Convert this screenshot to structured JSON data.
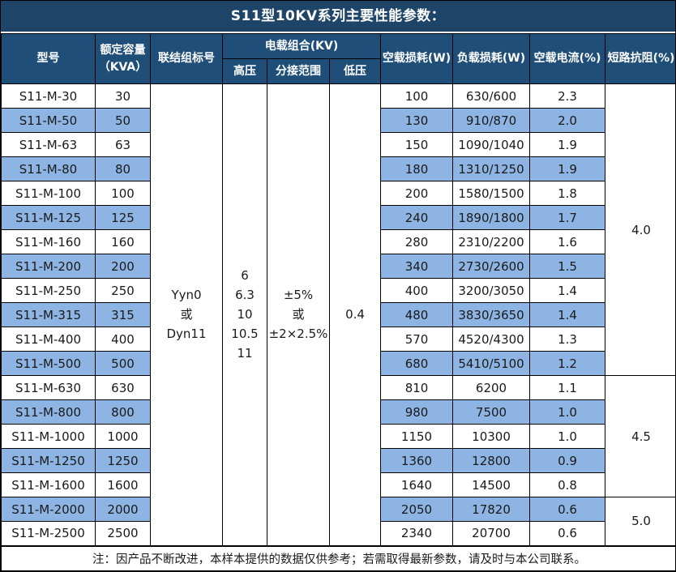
{
  "title": "S11型10KV系列主要性能参数：",
  "header": {
    "model": "型号",
    "capacity": "额定容量\n（KVA）",
    "connection": "联结组标号",
    "load_combo": "电载组合(KV)",
    "hv": "高压",
    "tap_range": "分接范围",
    "lv": "低压",
    "no_load_loss": "空载损耗(W)",
    "load_loss": "负载损耗(W)",
    "no_load_current": "空载电流(%)",
    "impedance": "短路抗阻(%)"
  },
  "merged": {
    "connection_lines": [
      "Yyn0",
      "或",
      "Dyn11"
    ],
    "hv_lines": [
      "6",
      "6.3",
      "10",
      "10.5",
      "11"
    ],
    "tap_lines": [
      "±5%",
      "或",
      "±2×2.5%"
    ],
    "lv_value": "0.4",
    "impedance_groups": [
      {
        "value": "4.0",
        "rows": 12
      },
      {
        "value": "4.5",
        "rows": 5
      },
      {
        "value": "5.0",
        "rows": 2
      }
    ]
  },
  "rows": [
    {
      "model": "S11-M-30",
      "capacity": "30",
      "no_load_loss": "100",
      "load_loss": "630/600",
      "no_load_current": "2.3"
    },
    {
      "model": "S11-M-50",
      "capacity": "50",
      "no_load_loss": "130",
      "load_loss": "910/870",
      "no_load_current": "2.0"
    },
    {
      "model": "S11-M-63",
      "capacity": "63",
      "no_load_loss": "150",
      "load_loss": "1090/1040",
      "no_load_current": "1.9"
    },
    {
      "model": "S11-M-80",
      "capacity": "80",
      "no_load_loss": "180",
      "load_loss": "1310/1250",
      "no_load_current": "1.9"
    },
    {
      "model": "S11-M-100",
      "capacity": "100",
      "no_load_loss": "200",
      "load_loss": "1580/1500",
      "no_load_current": "1.8"
    },
    {
      "model": "S11-M-125",
      "capacity": "125",
      "no_load_loss": "240",
      "load_loss": "1890/1800",
      "no_load_current": "1.7"
    },
    {
      "model": "S11-M-160",
      "capacity": "160",
      "no_load_loss": "280",
      "load_loss": "2310/2200",
      "no_load_current": "1.6"
    },
    {
      "model": "S11-M-200",
      "capacity": "200",
      "no_load_loss": "340",
      "load_loss": "2730/2600",
      "no_load_current": "1.5"
    },
    {
      "model": "S11-M-250",
      "capacity": "250",
      "no_load_loss": "400",
      "load_loss": "3200/3050",
      "no_load_current": "1.4"
    },
    {
      "model": "S11-M-315",
      "capacity": "315",
      "no_load_loss": "480",
      "load_loss": "3830/3650",
      "no_load_current": "1.4"
    },
    {
      "model": "S11-M-400",
      "capacity": "400",
      "no_load_loss": "570",
      "load_loss": "4520/4300",
      "no_load_current": "1.3"
    },
    {
      "model": "S11-M-500",
      "capacity": "500",
      "no_load_loss": "680",
      "load_loss": "5410/5100",
      "no_load_current": "1.2"
    },
    {
      "model": "S11-M-630",
      "capacity": "630",
      "no_load_loss": "810",
      "load_loss": "6200",
      "no_load_current": "1.1"
    },
    {
      "model": "S11-M-800",
      "capacity": "800",
      "no_load_loss": "980",
      "load_loss": "7500",
      "no_load_current": "1.0"
    },
    {
      "model": "S11-M-1000",
      "capacity": "1000",
      "no_load_loss": "1150",
      "load_loss": "10300",
      "no_load_current": "1.0"
    },
    {
      "model": "S11-M-1250",
      "capacity": "1250",
      "no_load_loss": "1360",
      "load_loss": "12800",
      "no_load_current": "0.9"
    },
    {
      "model": "S11-M-1600",
      "capacity": "1600",
      "no_load_loss": "1640",
      "load_loss": "14500",
      "no_load_current": "0.8"
    },
    {
      "model": "S11-M-2000",
      "capacity": "2000",
      "no_load_loss": "2050",
      "load_loss": "17820",
      "no_load_current": "0.6"
    },
    {
      "model": "S11-M-2500",
      "capacity": "2500",
      "no_load_loss": "2340",
      "load_loss": "20700",
      "no_load_current": "0.6"
    }
  ],
  "footer": "注：因产品不断改进，本样本提供的数据仅供参考；若需取得最新参数，请及时与本公司联系。",
  "colors": {
    "title_bg": "#1e4567",
    "header_bg": "#1f4e79",
    "stripe": "#8db4e2",
    "grid": "#000000",
    "text": "#1a1a1a"
  }
}
